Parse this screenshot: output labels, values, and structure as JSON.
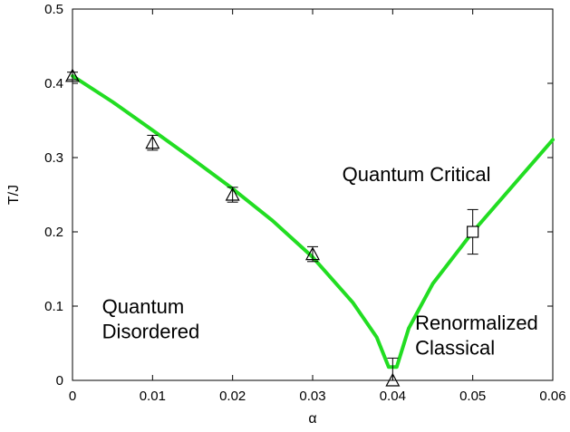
{
  "chart_data": {
    "type": "line",
    "xlabel": "α",
    "ylabel": "T/J",
    "xlim": [
      0,
      0.06
    ],
    "ylim": [
      0,
      0.5
    ],
    "x_ticks": [
      0,
      0.01,
      0.02,
      0.03,
      0.04,
      0.05,
      0.06
    ],
    "x_tick_labels": [
      "0",
      "0.01",
      "0.02",
      "0.03",
      "0.04",
      "0.05",
      "0.06"
    ],
    "y_ticks": [
      0,
      0.1,
      0.2,
      0.3,
      0.4,
      0.5
    ],
    "y_tick_labels": [
      "0",
      "0.1",
      "0.2",
      "0.3",
      "0.4",
      "0.5"
    ],
    "grid": false,
    "curve_color": "#22dd22",
    "series": [
      {
        "marker": "line",
        "x": [
          0,
          0.005,
          0.01,
          0.015,
          0.02,
          0.025,
          0.03,
          0.035,
          0.038,
          0.0395,
          0.0405,
          0.042,
          0.045,
          0.05,
          0.055,
          0.06
        ],
        "y": [
          0.41,
          0.375,
          0.337,
          0.298,
          0.258,
          0.215,
          0.166,
          0.105,
          0.058,
          0.018,
          0.018,
          0.07,
          0.13,
          0.2,
          0.262,
          0.324
        ]
      },
      {
        "marker": "triangle",
        "x": [
          0,
          0.01,
          0.02,
          0.03,
          0.04
        ],
        "y": [
          0.41,
          0.32,
          0.25,
          0.17,
          0.0
        ],
        "err": [
          0.005,
          0.01,
          0.01,
          0.01,
          0.03
        ]
      },
      {
        "marker": "square",
        "x": [
          0.05
        ],
        "y": [
          0.2
        ],
        "err": [
          0.03
        ]
      }
    ],
    "annotations": [
      {
        "text": "Quantum Critical",
        "x": 0.0337,
        "y": 0.268
      },
      {
        "text": "Quantum",
        "x": 0.0037,
        "y": 0.09
      },
      {
        "text": "Disordered",
        "x": 0.0037,
        "y": 0.057
      },
      {
        "text": "Renormalized",
        "x": 0.0428,
        "y": 0.068
      },
      {
        "text": "Classical",
        "x": 0.0428,
        "y": 0.035
      }
    ]
  }
}
